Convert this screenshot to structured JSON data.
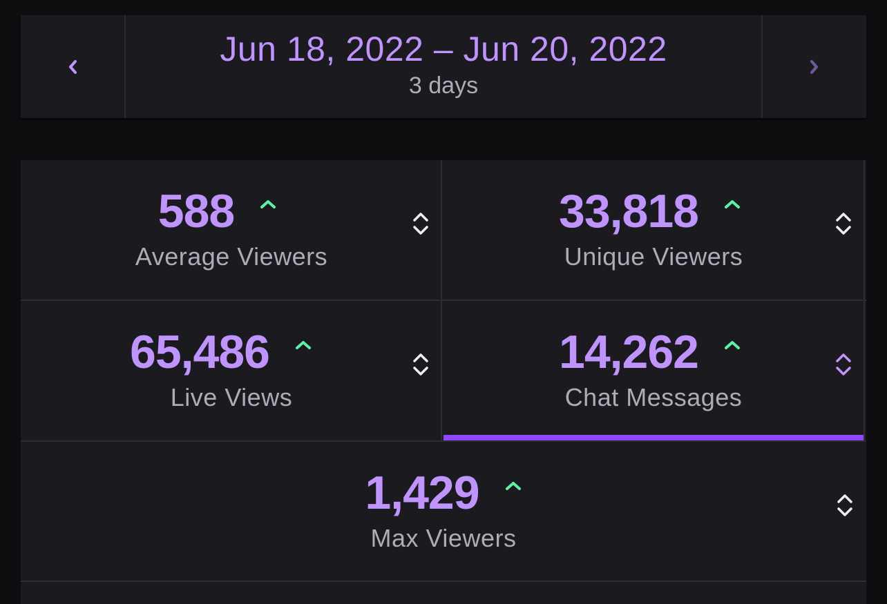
{
  "date_range": {
    "range_label": "Jun 18, 2022 – Jun 20, 2022",
    "duration_label": "3 days"
  },
  "stats": [
    {
      "value": "588",
      "label": "Average Viewers",
      "trend": "up",
      "active": false
    },
    {
      "value": "33,818",
      "label": "Unique Viewers",
      "trend": "up",
      "active": false
    },
    {
      "value": "65,486",
      "label": "Live Views",
      "trend": "up",
      "active": false
    },
    {
      "value": "14,262",
      "label": "Chat Messages",
      "trend": "up",
      "active": true
    },
    {
      "value": "1,429",
      "label": "Max Viewers",
      "trend": "up",
      "active": false
    }
  ],
  "colors": {
    "accent": "#bf94ff",
    "active_indicator": "#9147ff",
    "trend_up": "#5cf2a4",
    "label": "#adadb8",
    "panel": "#1a1a1f",
    "background": "#0e0e10"
  }
}
